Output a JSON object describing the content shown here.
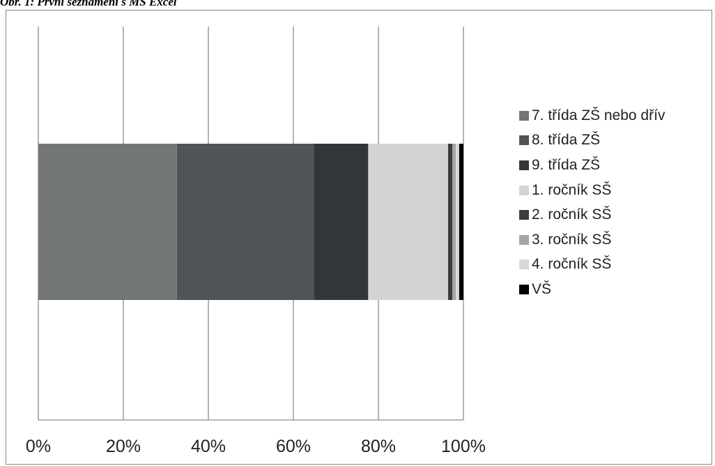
{
  "caption": "Obr. 1: První seznámení s MS Excel",
  "chart_data": {
    "type": "bar",
    "orientation": "horizontal",
    "stacked": "percent",
    "title": "",
    "xlabel": "",
    "ylabel": "",
    "xlim": [
      0,
      100
    ],
    "x_ticks": [
      "0%",
      "20%",
      "40%",
      "60%",
      "80%",
      "100%"
    ],
    "grid": true,
    "legend_position": "right",
    "series": [
      {
        "name": "7. třída ZŠ nebo dřív",
        "value": 32.6,
        "color": "#737677"
      },
      {
        "name": "8. třída ZŠ",
        "value": 32.2,
        "color": "#505457"
      },
      {
        "name": "9. třída ZŠ",
        "value": 12.8,
        "color": "#323639"
      },
      {
        "name": "1. ročník SŠ",
        "value": 18.8,
        "color": "#d4d4d4"
      },
      {
        "name": "2. ročník SŠ",
        "value": 1.0,
        "color": "#3a3d40"
      },
      {
        "name": "3. ročník SŠ",
        "value": 0.8,
        "color": "#a6a6a6"
      },
      {
        "name": "4. ročník SŠ",
        "value": 0.8,
        "color": "#d9d9d9"
      },
      {
        "name": "VŠ",
        "value": 1.0,
        "color": "#000000"
      }
    ]
  }
}
